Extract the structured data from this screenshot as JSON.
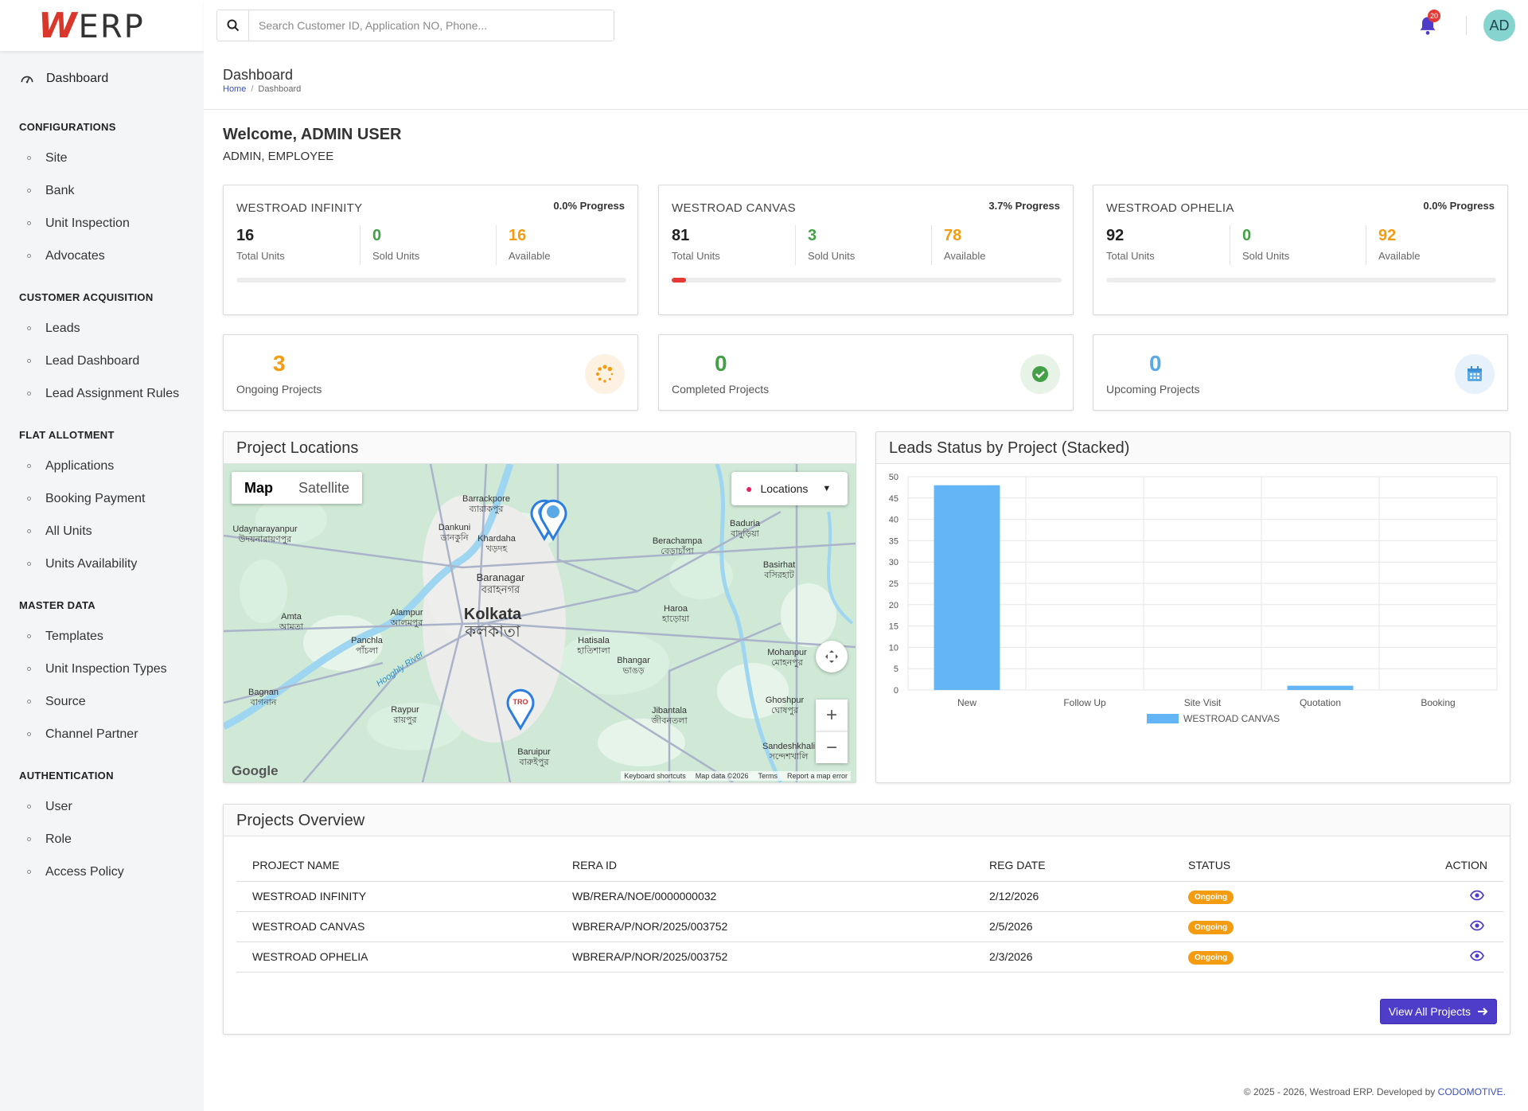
{
  "app": {
    "logo_w": "W",
    "logo_rest": "ERP"
  },
  "sidebar": {
    "dashboard_label": "Dashboard",
    "sections": [
      {
        "title": "CONFIGURATIONS",
        "items": [
          "Site",
          "Bank",
          "Unit Inspection",
          "Advocates"
        ]
      },
      {
        "title": "CUSTOMER ACQUISITION",
        "items": [
          "Leads",
          "Lead Dashboard",
          "Lead Assignment Rules"
        ]
      },
      {
        "title": "FLAT ALLOTMENT",
        "items": [
          "Applications",
          "Booking Payment",
          "All Units",
          "Units Availability"
        ]
      },
      {
        "title": "MASTER DATA",
        "items": [
          "Templates",
          "Unit Inspection Types",
          "Source",
          "Channel Partner"
        ]
      },
      {
        "title": "AUTHENTICATION",
        "items": [
          "User",
          "Role",
          "Access Policy"
        ]
      }
    ]
  },
  "topbar": {
    "search_placeholder": "Search Customer ID, Application NO, Phone...",
    "notification_count": "20",
    "avatar_initials": "AD"
  },
  "page": {
    "title": "Dashboard",
    "breadcrumb_home": "Home",
    "breadcrumb_sep": "/",
    "breadcrumb_current": "Dashboard",
    "welcome": "Welcome, ADMIN USER",
    "roles": "ADMIN, EMPLOYEE"
  },
  "projects": [
    {
      "name": "WESTROAD INFINITY",
      "progress_label": "0.0% Progress",
      "progress": 0.0,
      "total": "16",
      "sold": "0",
      "available": "16"
    },
    {
      "name": "WESTROAD CANVAS",
      "progress_label": "3.7% Progress",
      "progress": 3.7,
      "total": "81",
      "sold": "3",
      "available": "78"
    },
    {
      "name": "WESTROAD OPHELIA",
      "progress_label": "0.0% Progress",
      "progress": 0.0,
      "total": "92",
      "sold": "0",
      "available": "92"
    }
  ],
  "stat_labels": {
    "total": "Total Units",
    "sold": "Sold Units",
    "available": "Available"
  },
  "summary": [
    {
      "value": "3",
      "label": "Ongoing Projects",
      "color": "#f39c12",
      "icon": "spinner-icon"
    },
    {
      "value": "0",
      "label": "Completed Projects",
      "color": "#43a047",
      "icon": "check-circle-icon"
    },
    {
      "value": "0",
      "label": "Upcoming Projects",
      "color": "#5aa9e6",
      "icon": "calendar-icon"
    }
  ],
  "map_panel": {
    "title": "Project Locations",
    "tab_map": "Map",
    "tab_satellite": "Satellite",
    "locations_label": "Locations",
    "google": "Google",
    "footer_items": [
      "Keyboard shortcuts",
      "Map data ©2026",
      "Terms",
      "Report a map error"
    ],
    "places": [
      {
        "name": "Kolkata",
        "sub": "কলকাতা"
      },
      {
        "name": "Baranagar",
        "sub": "বরাহনগর"
      },
      {
        "name": "Barrackpore",
        "sub": "ব্যারাকপুর"
      },
      {
        "name": "Khardaha",
        "sub": "খড়দহ"
      },
      {
        "name": "Dankuni",
        "sub": "ডানকুনি"
      },
      {
        "name": "Alampur",
        "sub": "আলমপুর"
      },
      {
        "name": "Amta",
        "sub": "আমতা"
      },
      {
        "name": "Panchla",
        "sub": "পাঁচলা"
      },
      {
        "name": "Bagnan",
        "sub": "বাগনান"
      },
      {
        "name": "Raypur",
        "sub": "রায়পুর"
      },
      {
        "name": "Hatisala",
        "sub": "হাতিশালা"
      },
      {
        "name": "Bhangar",
        "sub": "ভাঙড়"
      },
      {
        "name": "Haroa",
        "sub": "হাড়োয়া"
      },
      {
        "name": "Berachampa",
        "sub": "বেড়াচাঁপা"
      },
      {
        "name": "Baduria",
        "sub": "বাদুড়িয়া"
      },
      {
        "name": "Basirhat",
        "sub": "বসিরহাট"
      },
      {
        "name": "Mohanpur",
        "sub": "মোহনপুর"
      },
      {
        "name": "Jibantala",
        "sub": "জীবনতলা"
      },
      {
        "name": "Baruipur",
        "sub": "বারুইপুর"
      },
      {
        "name": "Ghoshpur",
        "sub": "ঘোষপুর"
      },
      {
        "name": "Sandeshkhali",
        "sub": "সন্দেশখালি"
      },
      {
        "name": "Udaynarayanpur",
        "sub": "উদয়নারায়ণপুর"
      },
      {
        "name": "Hooghly River",
        "sub": ""
      }
    ]
  },
  "chart_panel": {
    "title": "Leads Status by Project (Stacked)"
  },
  "chart_data": {
    "type": "bar",
    "title": "Leads Status by Project (Stacked)",
    "categories": [
      "New",
      "Follow Up",
      "Site Visit",
      "Quotation",
      "Booking"
    ],
    "series": [
      {
        "name": "WESTROAD CANVAS",
        "values": [
          48,
          0,
          0,
          1,
          0
        ],
        "color": "#64b5f6"
      }
    ],
    "ylim": [
      0,
      50
    ],
    "yticks": [
      0,
      5,
      10,
      15,
      20,
      25,
      30,
      35,
      40,
      45,
      50
    ],
    "grid": true,
    "legend": "bottom"
  },
  "overview": {
    "title": "Projects Overview",
    "columns": [
      "PROJECT NAME",
      "RERA ID",
      "REG DATE",
      "STATUS",
      "ACTION"
    ],
    "rows": [
      {
        "name": "WESTROAD INFINITY",
        "rera": "WB/RERA/NOE/0000000032",
        "date": "2/12/2026",
        "status": "Ongoing"
      },
      {
        "name": "WESTROAD CANVAS",
        "rera": "WBRERA/P/NOR/2025/003752",
        "date": "2/5/2026",
        "status": "Ongoing"
      },
      {
        "name": "WESTROAD OPHELIA",
        "rera": "WBRERA/P/NOR/2025/003752",
        "date": "2/3/2026",
        "status": "Ongoing"
      }
    ],
    "view_all_label": "View All Projects"
  },
  "footer": {
    "text": "© 2025 - 2026, Westroad ERP. Developed by ",
    "brand": "CODOMOTIVE."
  }
}
